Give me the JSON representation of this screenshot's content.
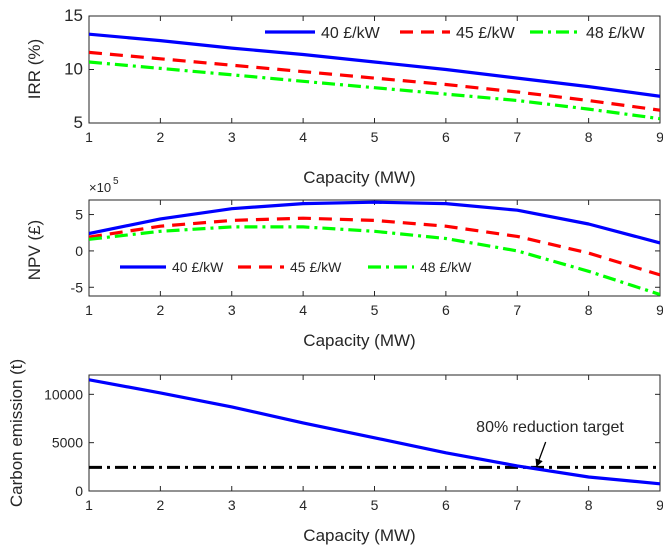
{
  "chart_data": [
    {
      "type": "line",
      "xlabel": "Capacity (MW)",
      "ylabel": "IRR (%)",
      "xlim": [
        1,
        9
      ],
      "ylim": [
        5,
        15
      ],
      "xticks": [
        "1",
        "2",
        "3",
        "4",
        "5",
        "6",
        "7",
        "8",
        "9"
      ],
      "yticks": [
        "5",
        "10",
        "15"
      ],
      "legend_position": "top-right",
      "grid": false,
      "x": [
        1,
        2,
        3,
        4,
        5,
        6,
        7,
        8,
        9
      ],
      "series": [
        {
          "name": "40 £/kW",
          "color": "#0000ff",
          "dash": "solid",
          "values": [
            13.3,
            12.7,
            12.0,
            11.4,
            10.7,
            10.0,
            9.2,
            8.4,
            7.5
          ]
        },
        {
          "name": "45 £/kW",
          "color": "#ff0000",
          "dash": "dashed",
          "values": [
            11.6,
            11.0,
            10.4,
            9.8,
            9.2,
            8.6,
            7.9,
            7.1,
            6.2
          ]
        },
        {
          "name": "48 £/kW",
          "color": "#00ff00",
          "dash": "dashdot",
          "values": [
            10.7,
            10.1,
            9.5,
            8.9,
            8.3,
            7.7,
            7.1,
            6.3,
            5.4
          ]
        }
      ]
    },
    {
      "type": "line",
      "xlabel": "Capacity (MW)",
      "ylabel": "NPV (£)",
      "exponent_label": "×10",
      "exponent_power": "5",
      "xlim": [
        1,
        9
      ],
      "ylim": [
        -6.2,
        7
      ],
      "yticks_values": [
        -5,
        0,
        5
      ],
      "xticks": [
        "1",
        "2",
        "3",
        "4",
        "5",
        "6",
        "7",
        "8",
        "9"
      ],
      "yticks": [
        "-5",
        "0",
        "5"
      ],
      "legend_position": "bottom",
      "grid": false,
      "x": [
        1,
        2,
        3,
        4,
        5,
        6,
        7,
        8,
        9
      ],
      "series": [
        {
          "name": "40 £/kW",
          "color": "#0000ff",
          "dash": "solid",
          "values": [
            2.4,
            4.4,
            5.8,
            6.5,
            6.7,
            6.5,
            5.6,
            3.7,
            1.1
          ]
        },
        {
          "name": "45 £/kW",
          "color": "#ff0000",
          "dash": "dashed",
          "values": [
            1.9,
            3.4,
            4.2,
            4.5,
            4.2,
            3.4,
            2.0,
            -0.3,
            -3.3
          ]
        },
        {
          "name": "48 £/kW",
          "color": "#00ff00",
          "dash": "dashdot",
          "values": [
            1.6,
            2.7,
            3.3,
            3.3,
            2.7,
            1.7,
            0.0,
            -2.8,
            -6.0
          ]
        }
      ]
    },
    {
      "type": "line",
      "xlabel": "Capacity (MW)",
      "ylabel": "Carbon emission (t)",
      "xlim": [
        1,
        9
      ],
      "ylim": [
        0,
        12000
      ],
      "yticks_values": [
        0,
        5000,
        10000
      ],
      "xticks": [
        "1",
        "2",
        "3",
        "4",
        "5",
        "6",
        "7",
        "8",
        "9"
      ],
      "yticks": [
        "0",
        "5000",
        "10000"
      ],
      "grid": false,
      "x": [
        1,
        2,
        3,
        4,
        5,
        6,
        7,
        8,
        9
      ],
      "series": [
        {
          "name": "",
          "color": "#0000ff",
          "dash": "solid",
          "values": [
            11500,
            10150,
            8700,
            7050,
            5500,
            3950,
            2600,
            1450,
            750
          ]
        }
      ],
      "reference_line": {
        "value": 2450,
        "color": "#000000",
        "dash": "dashdot"
      },
      "annotation": {
        "text": "80% reduction target",
        "arrow_to": [
          7.3,
          2450
        ]
      }
    }
  ]
}
